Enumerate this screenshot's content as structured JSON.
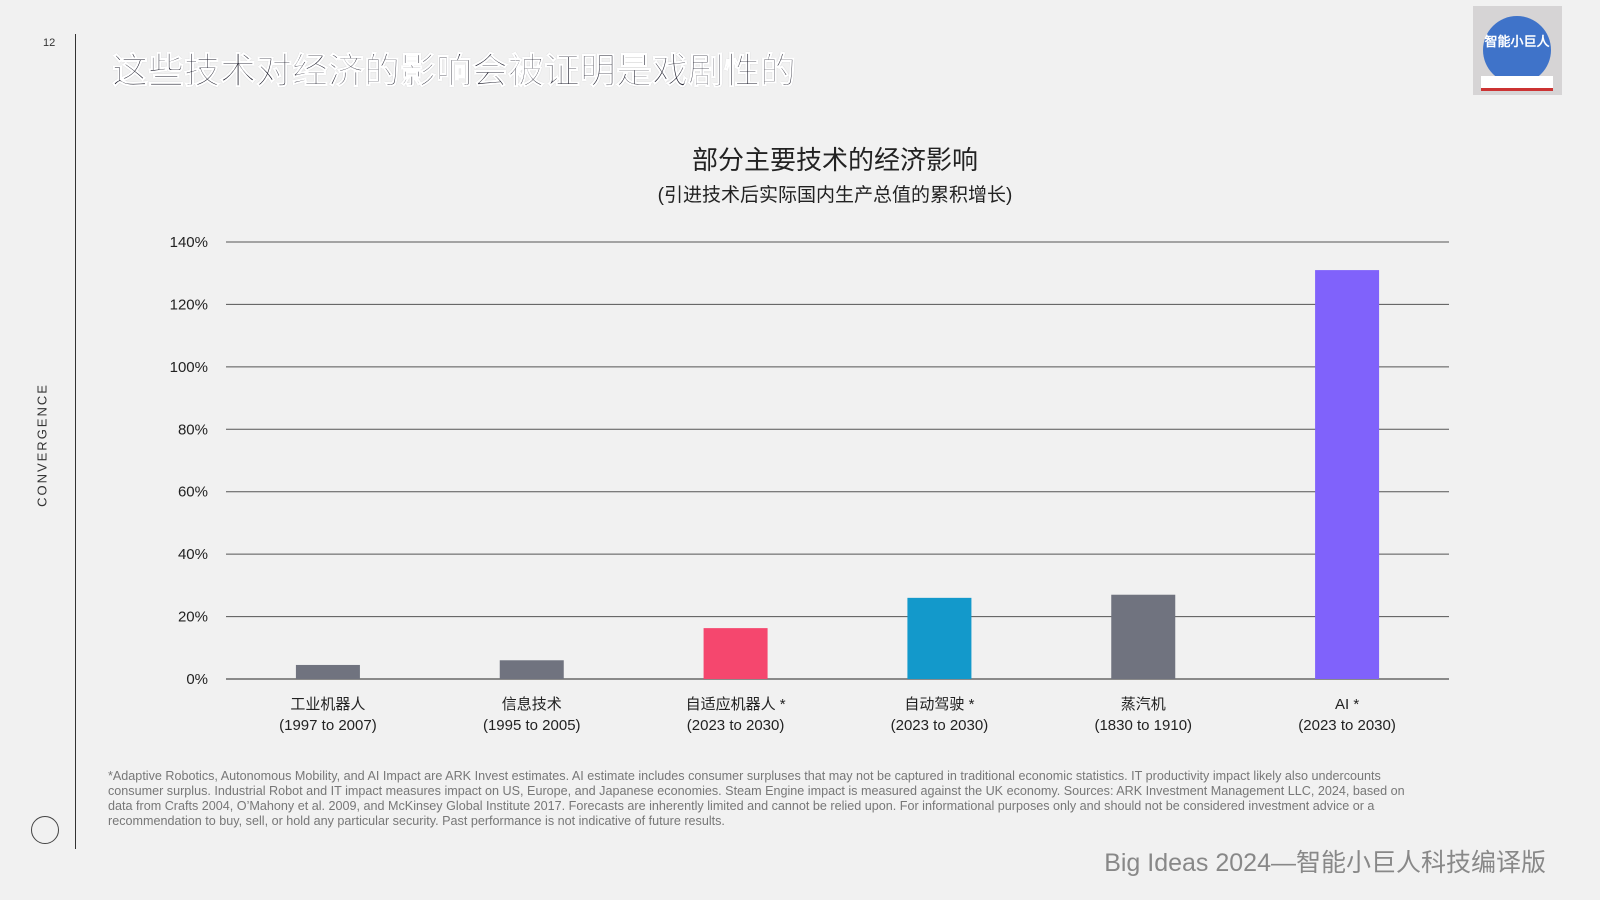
{
  "page_number": "12",
  "side_label": "CONVERGENCE",
  "title": "这些技术对经济的影响会被证明是戏剧性的",
  "logo_text": "智能小巨人",
  "chart_data": {
    "type": "bar",
    "title": "部分主要技术的经济影响",
    "subtitle": "(引进技术后实际国内生产总值的累积增长)",
    "categories": [
      "工业机器人",
      "信息技术",
      "自适应机器人 *",
      "自动驾驶 *",
      "蒸汽机",
      "AI *"
    ],
    "periods": [
      "(1997 to 2007)",
      "(1995 to 2005)",
      "(2023 to 2030)",
      "(2023 to 2030)",
      "(1830 to 1910)",
      "(2023 to 2030)"
    ],
    "values": [
      4.5,
      6,
      16.3,
      26,
      27,
      131
    ],
    "colors": [
      "#70737f",
      "#70737f",
      "#f5476e",
      "#1399cb",
      "#70737f",
      "#8062fb"
    ],
    "ylim": [
      0,
      140
    ],
    "yticks": [
      "0%",
      "20%",
      "40%",
      "60%",
      "80%",
      "100%",
      "120%",
      "140%"
    ],
    "grid": true
  },
  "footnote": "*Adaptive Robotics, Autonomous Mobility, and AI Impact are ARK Invest estimates. AI estimate includes consumer surpluses that may not be captured in traditional economic statistics. IT productivity impact likely also undercounts consumer surplus. Industrial Robot and IT impact measures impact on US, Europe, and Japanese economies. Steam Engine impact is measured against the UK economy. Sources: ARK Investment Management LLC, 2024, based on data from Crafts 2004, O’Mahony et al. 2009, and McKinsey Global Institute 2017. Forecasts are inherently limited and cannot be relied upon. For informational purposes only and should not be considered investment advice or a recommendation to buy, sell, or hold any particular security. Past performance is not indicative of future results.",
  "brand": "Big Ideas 2024—智能小巨人科技编译版"
}
